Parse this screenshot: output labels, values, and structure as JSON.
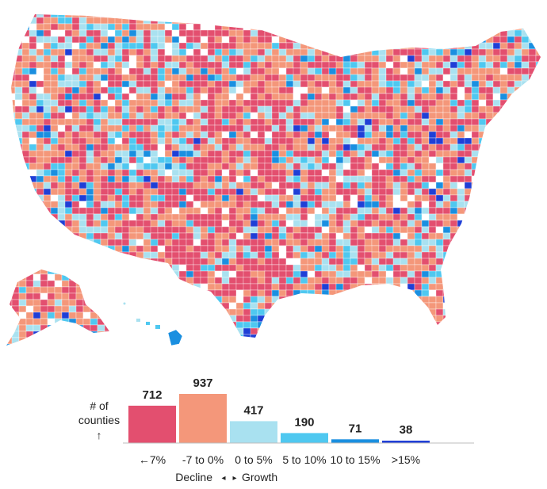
{
  "chart_data": {
    "type": "bar",
    "ylabel_lines": [
      "# of",
      "counties",
      "↑"
    ],
    "categories": [
      "←7%",
      "-7 to 0%",
      "0 to 5%",
      "5 to 10%",
      "10 to 15%",
      ">15%"
    ],
    "values": [
      712,
      937,
      417,
      190,
      71,
      38
    ],
    "value_labels": [
      "712",
      "937",
      "417",
      "190",
      "71",
      "38"
    ],
    "colors": [
      "#e34f6f",
      "#f4977a",
      "#a9e1f0",
      "#4fc8f0",
      "#1a8fe0",
      "#1f3fd6"
    ],
    "axis_caption": {
      "left": "Decline",
      "left_arrow": "◂",
      "right_arrow": "▸",
      "right": "Growth"
    }
  },
  "map": {
    "unmapped_color": "#ffffff",
    "border_color": "#ffffff"
  }
}
